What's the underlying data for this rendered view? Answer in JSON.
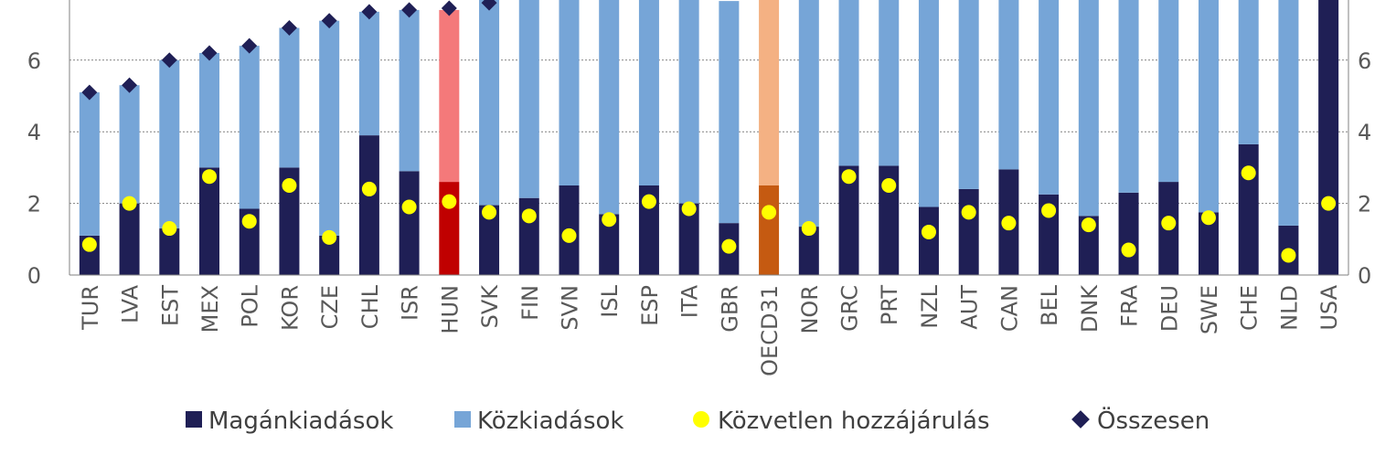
{
  "chart_data": {
    "type": "bar",
    "stacked": true,
    "categories": [
      "TUR",
      "LVA",
      "EST",
      "MEX",
      "POL",
      "KOR",
      "CZE",
      "CHL",
      "ISR",
      "HUN",
      "SVK",
      "FIN",
      "SVN",
      "ISL",
      "ESP",
      "ITA",
      "GBR",
      "OECD31",
      "NOR",
      "GRC",
      "PRT",
      "NZL",
      "AUT",
      "CAN",
      "BEL",
      "DNK",
      "FRA",
      "DEU",
      "SWE",
      "CHE",
      "NLD",
      "USA"
    ],
    "series": [
      {
        "name": "Magánkiadások",
        "kind": "bar",
        "values": [
          1.1,
          2.0,
          1.3,
          3.0,
          1.85,
          3.0,
          1.1,
          3.9,
          2.9,
          2.6,
          1.95,
          2.15,
          2.5,
          1.7,
          2.5,
          2.0,
          1.45,
          2.5,
          1.35,
          3.05,
          3.05,
          1.9,
          2.4,
          2.95,
          2.25,
          1.65,
          2.3,
          2.6,
          1.75,
          3.65,
          1.38,
          8.5
        ]
      },
      {
        "name": "Közkiadások",
        "kind": "bar",
        "values": [
          4.0,
          3.3,
          4.7,
          3.2,
          4.55,
          3.9,
          6.0,
          3.45,
          4.5,
          4.8,
          5.75,
          6.0,
          6.0,
          6.0,
          6.0,
          6.0,
          6.2,
          6.0,
          6.6,
          5.0,
          5.0,
          6.0,
          5.6,
          5.0,
          5.75,
          6.35,
          5.7,
          5.4,
          6.25,
          4.35,
          6.6,
          0
        ]
      },
      {
        "name": "Közvetlen hozzájárulás",
        "kind": "dot",
        "values": [
          0.85,
          2.0,
          1.3,
          2.75,
          1.5,
          2.5,
          1.05,
          2.4,
          1.9,
          2.05,
          1.75,
          1.65,
          1.1,
          1.55,
          2.05,
          1.85,
          0.8,
          1.75,
          1.3,
          2.75,
          2.5,
          1.2,
          1.75,
          1.45,
          1.8,
          1.4,
          0.7,
          1.45,
          1.6,
          2.85,
          0.55,
          2.0
        ]
      },
      {
        "name": "Összesen",
        "kind": "marker",
        "values": [
          5.1,
          5.3,
          6.0,
          6.2,
          6.4,
          6.9,
          7.1,
          7.35,
          7.4,
          7.45,
          7.6,
          null,
          null,
          null,
          null,
          null,
          null,
          null,
          null,
          null,
          null,
          null,
          null,
          null,
          null,
          null,
          null,
          null,
          null,
          null,
          null,
          null
        ]
      }
    ],
    "highlight": {
      "HUN": [
        "#c00000",
        "#f4797a"
      ],
      "OECD31": [
        "#c55a11",
        "#f4b183"
      ]
    },
    "colors": {
      "private": "#1f1f55",
      "public": "#76a5d7",
      "direct": "#ffff00",
      "total": "#1f1f55"
    },
    "y_ticks": [
      "0",
      "2",
      "4",
      "6"
    ],
    "ylim": [
      0,
      8
    ],
    "grid": true,
    "legend_position": "bottom"
  }
}
